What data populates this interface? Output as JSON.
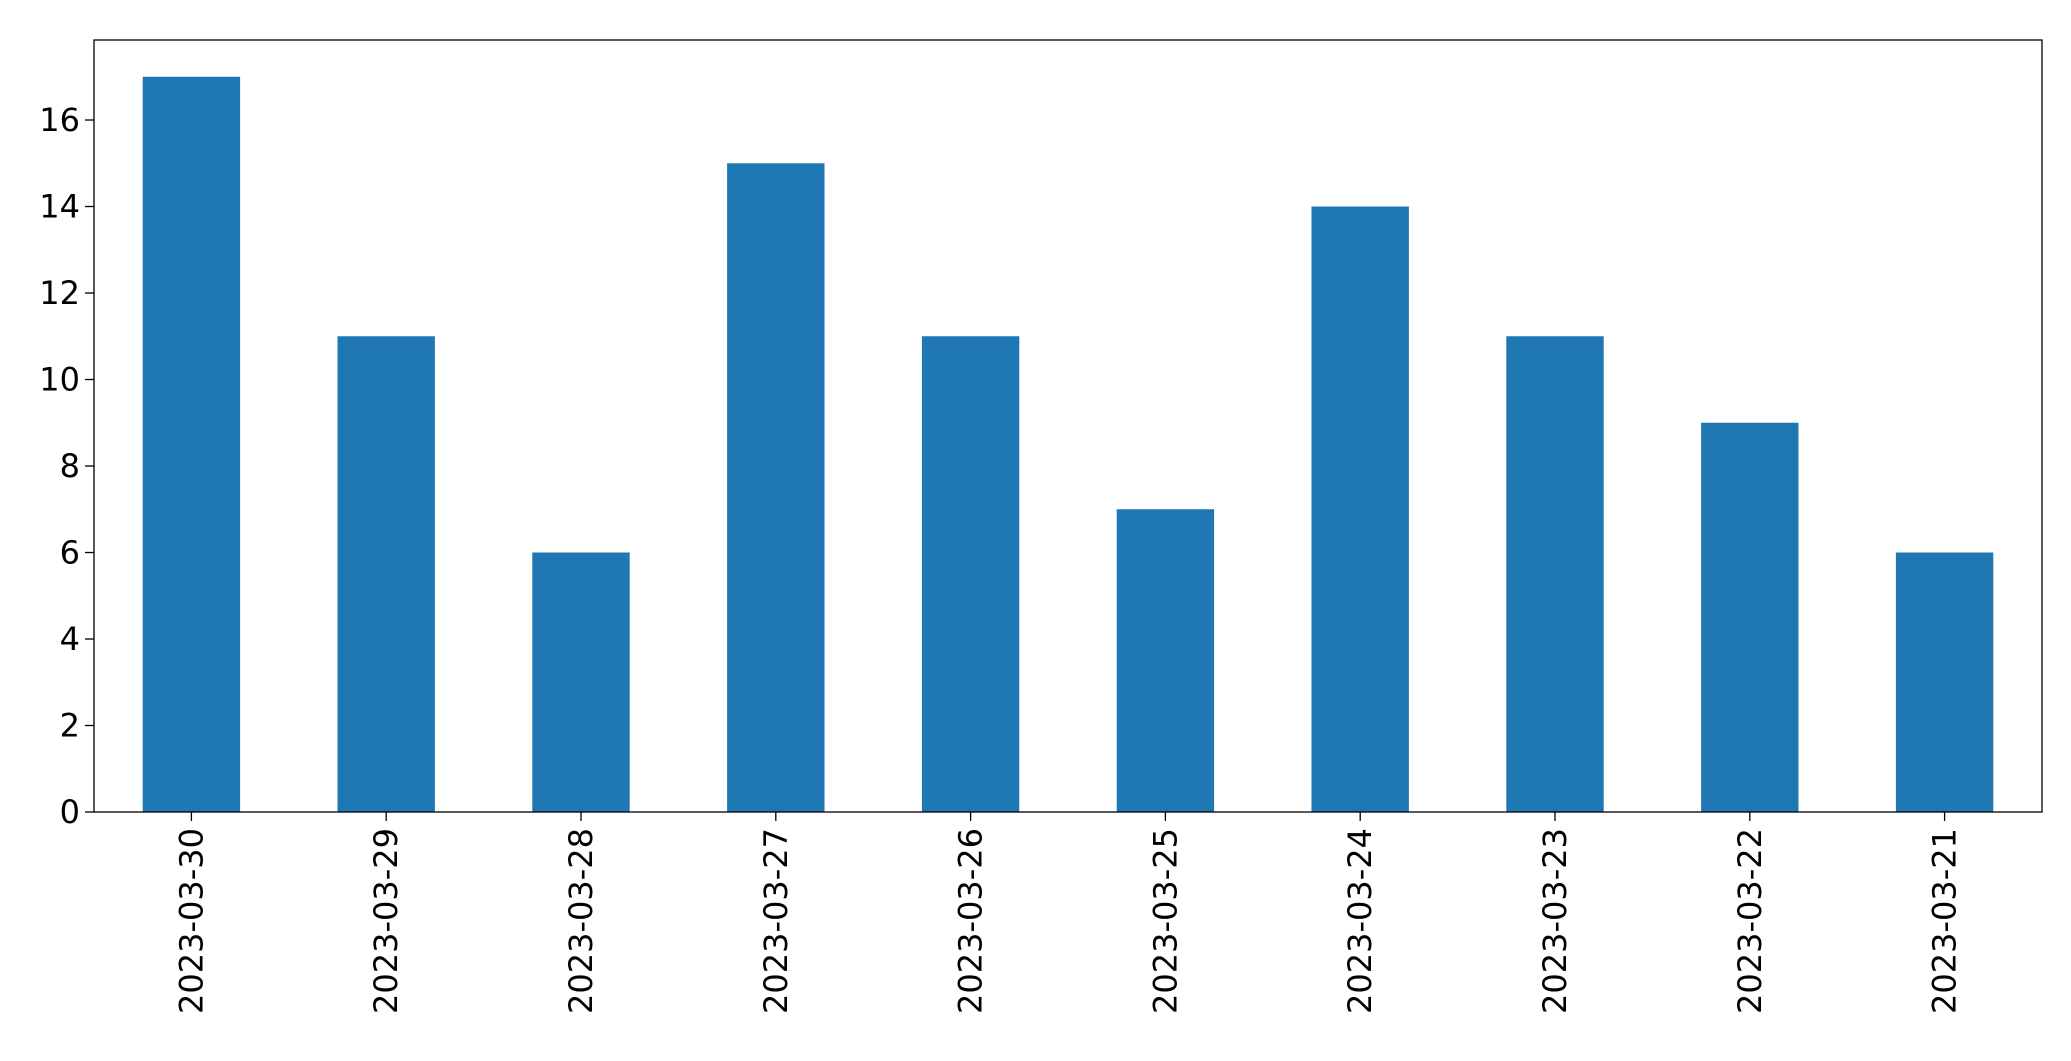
{
  "chart_data": {
    "type": "bar",
    "categories": [
      "2023-03-30",
      "2023-03-29",
      "2023-03-28",
      "2023-03-27",
      "2023-03-26",
      "2023-03-25",
      "2023-03-24",
      "2023-03-23",
      "2023-03-22",
      "2023-03-21"
    ],
    "values": [
      17,
      11,
      6,
      15,
      11,
      7,
      14,
      11,
      9,
      6
    ],
    "color": "#1f77b4",
    "ylim": [
      0,
      17.85
    ],
    "yticks": [
      0,
      2,
      4,
      6,
      8,
      10,
      12,
      14,
      16
    ],
    "grid": false
  }
}
